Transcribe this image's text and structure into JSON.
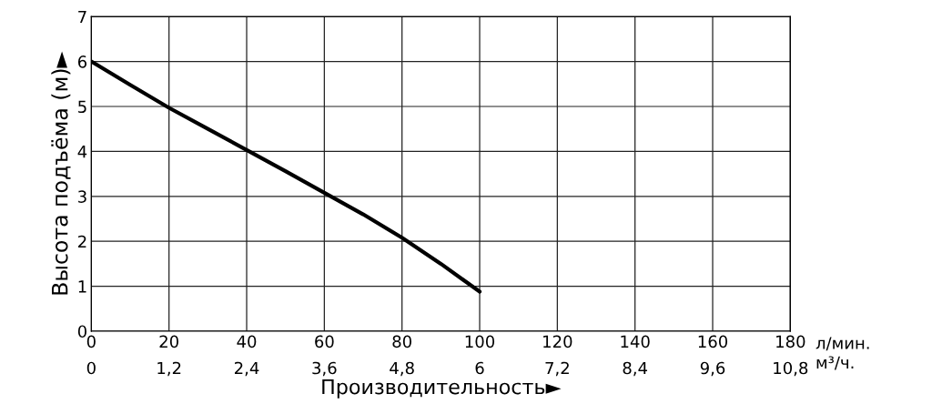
{
  "chart_data": {
    "type": "line",
    "xlabel": "Производительность►",
    "ylabel": "Высота подъёма (м)►",
    "x": [
      0,
      10,
      20,
      30,
      40,
      50,
      60,
      70,
      80,
      90,
      100
    ],
    "series": [
      {
        "color": "#000000",
        "values": [
          6.0,
          5.48,
          4.97,
          4.5,
          4.03,
          3.56,
          3.08,
          2.6,
          2.08,
          1.5,
          0.88
        ]
      }
    ],
    "xlim": [
      0,
      180
    ],
    "xticks": [
      0,
      20,
      40,
      60,
      80,
      100,
      120,
      140,
      160,
      180
    ],
    "ylim": [
      0,
      7
    ],
    "yticks": [
      0,
      1,
      2,
      3,
      4,
      5,
      6,
      7
    ],
    "x2lim": [
      0,
      10.8
    ],
    "x2ticks": [
      0,
      {
        "value": 1.2,
        "label": "1,2"
      },
      {
        "value": 2.4,
        "label": "2,4"
      },
      {
        "value": 3.6,
        "label": "3,6"
      },
      {
        "value": 4.8,
        "label": "4,8"
      },
      6,
      {
        "value": 7.2,
        "label": "7,2"
      },
      {
        "value": 8.4,
        "label": "8,4"
      },
      {
        "value": 9.6,
        "label": "9,6"
      },
      {
        "value": 10.8,
        "label": "10,8"
      }
    ],
    "annotations": [
      "л/мин.",
      "м³/ч."
    ],
    "grid": true,
    "legend": false,
    "marker": "none",
    "line_style": "solid"
  }
}
